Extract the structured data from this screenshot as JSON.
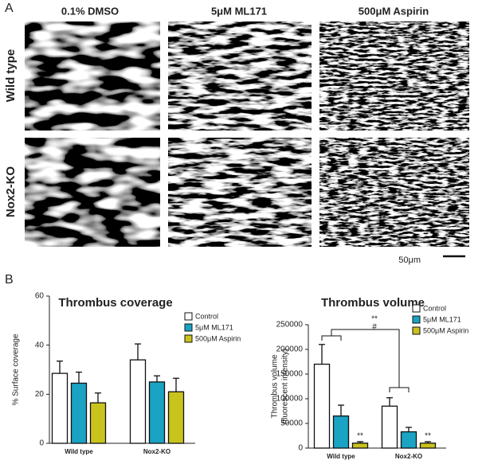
{
  "panels": {
    "a_label": "A",
    "b_label": "B"
  },
  "images": {
    "columns": [
      "0.1% DMSO",
      "5μM ML171",
      "500μM Aspirin"
    ],
    "rows": [
      "Wild type",
      "Nox2-KO"
    ],
    "scale_bar": "50μm"
  },
  "chart_data": [
    {
      "type": "bar",
      "title": "Thrombus coverage",
      "y_label": [
        "% Surface coverage"
      ],
      "categories": [
        "Wild type",
        "Nox2-KO"
      ],
      "series": [
        {
          "name": "Control",
          "color": "#ffffff",
          "values": [
            28.5,
            34
          ],
          "errors": [
            5,
            6.5
          ]
        },
        {
          "name": "5μM ML171",
          "color": "#1aa3c2",
          "values": [
            24.5,
            25
          ],
          "errors": [
            4.5,
            2.5
          ]
        },
        {
          "name": "500μM Aspirin",
          "color": "#c9c31e",
          "values": [
            16.5,
            21
          ],
          "errors": [
            4,
            5.5
          ]
        }
      ],
      "ylim": [
        0,
        60
      ],
      "yticks": [
        0,
        20,
        40,
        60
      ]
    },
    {
      "type": "bar",
      "title": "Thrombus volume",
      "y_label": [
        "Thrombus volume",
        "(fluorescent intensity)"
      ],
      "categories": [
        "Wild type",
        "Nox2-KO"
      ],
      "series": [
        {
          "name": "Control",
          "color": "#ffffff",
          "values": [
            170000,
            85000
          ],
          "errors": [
            40000,
            17000
          ]
        },
        {
          "name": "5μM ML171",
          "color": "#1aa3c2",
          "values": [
            65000,
            33000
          ],
          "errors": [
            22000,
            9000
          ]
        },
        {
          "name": "500μM Aspirin",
          "color": "#c9c31e",
          "values": [
            10000,
            10000
          ],
          "errors": [
            3000,
            3000
          ]
        }
      ],
      "ylim": [
        0,
        250000
      ],
      "yticks": [
        0,
        50000,
        100000,
        150000,
        200000,
        250000
      ],
      "annotations": [
        "**",
        "**",
        "**",
        "#"
      ]
    }
  ]
}
